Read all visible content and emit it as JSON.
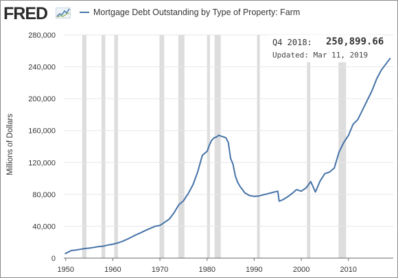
{
  "header": {
    "logo_text": "FRED",
    "legend_label": "Mortgage Debt Outstanding by Type of Property: Farm"
  },
  "info": {
    "period": "Q4 2018:",
    "value": "250,899.66",
    "updated": "Updated: Mar 11, 2019"
  },
  "colors": {
    "series": "#4572a7",
    "recession": "#dddddd",
    "grid": "#e6e6e6"
  },
  "chart_data": {
    "type": "line",
    "title": "Mortgage Debt Outstanding by Type of Property: Farm",
    "xlabel": "",
    "ylabel": "Millions of Dollars",
    "xlim": [
      1949.6,
      2019.5
    ],
    "ylim": [
      0,
      280000
    ],
    "yticks": [
      {
        "value": 0,
        "label": "0"
      },
      {
        "value": 40000,
        "label": "40,000"
      },
      {
        "value": 80000,
        "label": "80,000"
      },
      {
        "value": 120000,
        "label": "120,000"
      },
      {
        "value": 160000,
        "label": "160,000"
      },
      {
        "value": 200000,
        "label": "200,000"
      },
      {
        "value": 240000,
        "label": "240,000"
      },
      {
        "value": 280000,
        "label": "280,000"
      }
    ],
    "xticks": [
      {
        "value": 1950,
        "label": "1950"
      },
      {
        "value": 1960,
        "label": "1960"
      },
      {
        "value": 1970,
        "label": "1970"
      },
      {
        "value": 1980,
        "label": "1980"
      },
      {
        "value": 1990,
        "label": "1990"
      },
      {
        "value": 2000,
        "label": "2000"
      },
      {
        "value": 2010,
        "label": "2010"
      }
    ],
    "grid": true,
    "recessions": [
      [
        1953.5,
        1954.4
      ],
      [
        1957.6,
        1958.4
      ],
      [
        1960.3,
        1961.1
      ],
      [
        1969.9,
        1970.9
      ],
      [
        1973.9,
        1975.2
      ],
      [
        1980.0,
        1980.6
      ],
      [
        1981.6,
        1982.9
      ],
      [
        1990.6,
        1991.2
      ],
      [
        2001.2,
        2001.9
      ],
      [
        2007.9,
        2009.5
      ]
    ],
    "series": [
      {
        "name": "Mortgage Debt Outstanding by Type of Property: Farm",
        "x": [
          1949.8,
          1950.5,
          1951.2,
          1952,
          1953,
          1954,
          1955,
          1956,
          1957,
          1958,
          1959,
          1960,
          1961,
          1962,
          1963,
          1964,
          1965,
          1966,
          1967,
          1968,
          1969,
          1970,
          1971,
          1972,
          1973,
          1974,
          1975,
          1976,
          1977,
          1978,
          1979,
          1980,
          1980.5,
          1981,
          1981.5,
          1982,
          1982.5,
          1983,
          1983.5,
          1984,
          1984.5,
          1985,
          1985.5,
          1986,
          1986.5,
          1987,
          1988,
          1989,
          1990,
          1991,
          1992,
          1993,
          1994,
          1995,
          1995.3,
          1996,
          1997,
          1998,
          1999,
          2000,
          2001,
          2002,
          2003,
          2004,
          2005,
          2006,
          2007,
          2008,
          2009,
          2010,
          2011,
          2012,
          2013,
          2014,
          2015,
          2016,
          2017,
          2018.9
        ],
        "values": [
          5500,
          7500,
          9500,
          10000,
          11000,
          12000,
          12500,
          13500,
          14500,
          15000,
          16500,
          17500,
          19000,
          21000,
          23500,
          26500,
          29500,
          32000,
          35000,
          37500,
          40000,
          41000,
          45000,
          49000,
          57000,
          67000,
          72000,
          81000,
          92000,
          108000,
          129000,
          134000,
          142000,
          148000,
          151000,
          152000,
          154000,
          153000,
          152000,
          151000,
          145000,
          125000,
          118000,
          103000,
          95000,
          90000,
          82000,
          78500,
          77500,
          78000,
          79500,
          81000,
          82500,
          84000,
          71500,
          73000,
          76500,
          81000,
          86000,
          84000,
          88000,
          96000,
          83000,
          97000,
          106000,
          108000,
          113000,
          133000,
          145000,
          154000,
          168000,
          174000,
          186000,
          198000,
          210000,
          225000,
          236000,
          251000
        ]
      }
    ]
  }
}
